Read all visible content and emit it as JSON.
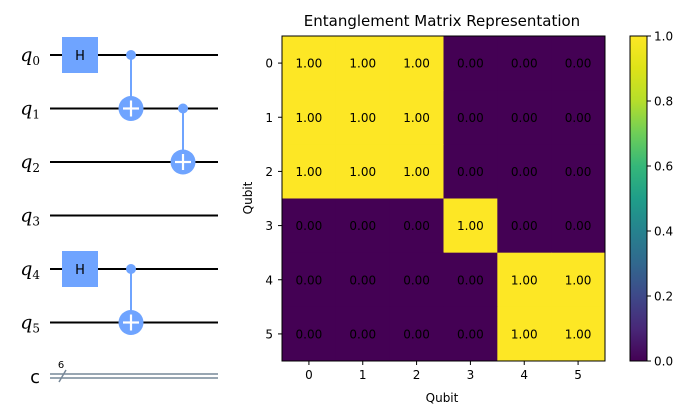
{
  "circuit": {
    "qubit_labels": [
      {
        "base": "q",
        "sub": "0"
      },
      {
        "base": "q",
        "sub": "1"
      },
      {
        "base": "q",
        "sub": "2"
      },
      {
        "base": "q",
        "sub": "3"
      },
      {
        "base": "q",
        "sub": "4"
      },
      {
        "base": "q",
        "sub": "5"
      }
    ],
    "classical_label": "c",
    "classical_width": "6",
    "gate_h_label": "H",
    "gates": [
      {
        "type": "H",
        "qubit": 0,
        "column": 0
      },
      {
        "type": "CX",
        "control": 0,
        "target": 1,
        "column": 1
      },
      {
        "type": "CX",
        "control": 1,
        "target": 2,
        "column": 2
      },
      {
        "type": "H",
        "qubit": 4,
        "column": 0
      },
      {
        "type": "CX",
        "control": 4,
        "target": 5,
        "column": 1
      }
    ],
    "colors": {
      "gate": "#6fa4ff",
      "wire": "#000000",
      "classical_wire": "#778899"
    }
  },
  "chart_data": {
    "type": "heatmap",
    "title": "Entanglement Matrix Representation",
    "xlabel": "Qubit",
    "ylabel": "Qubit",
    "x_ticks": [
      "0",
      "1",
      "2",
      "3",
      "4",
      "5"
    ],
    "y_ticks": [
      "0",
      "1",
      "2",
      "3",
      "4",
      "5"
    ],
    "values": [
      [
        1,
        1,
        1,
        0,
        0,
        0
      ],
      [
        1,
        1,
        1,
        0,
        0,
        0
      ],
      [
        1,
        1,
        1,
        0,
        0,
        0
      ],
      [
        0,
        0,
        0,
        1,
        0,
        0
      ],
      [
        0,
        0,
        0,
        0,
        1,
        1
      ],
      [
        0,
        0,
        0,
        0,
        1,
        1
      ]
    ],
    "cell_labels": [
      [
        "1.00",
        "1.00",
        "1.00",
        "0.00",
        "0.00",
        "0.00"
      ],
      [
        "1.00",
        "1.00",
        "1.00",
        "0.00",
        "0.00",
        "0.00"
      ],
      [
        "1.00",
        "1.00",
        "1.00",
        "0.00",
        "0.00",
        "0.00"
      ],
      [
        "0.00",
        "0.00",
        "0.00",
        "1.00",
        "0.00",
        "0.00"
      ],
      [
        "0.00",
        "0.00",
        "0.00",
        "0.00",
        "1.00",
        "1.00"
      ],
      [
        "0.00",
        "0.00",
        "0.00",
        "0.00",
        "1.00",
        "1.00"
      ]
    ],
    "colorbar": {
      "min": 0.0,
      "max": 1.0,
      "ticks": [
        "0.0",
        "0.2",
        "0.4",
        "0.6",
        "0.8",
        "1.0"
      ],
      "colormap": "viridis",
      "low_color": "#440154",
      "high_color": "#fde725"
    },
    "grid": false
  }
}
